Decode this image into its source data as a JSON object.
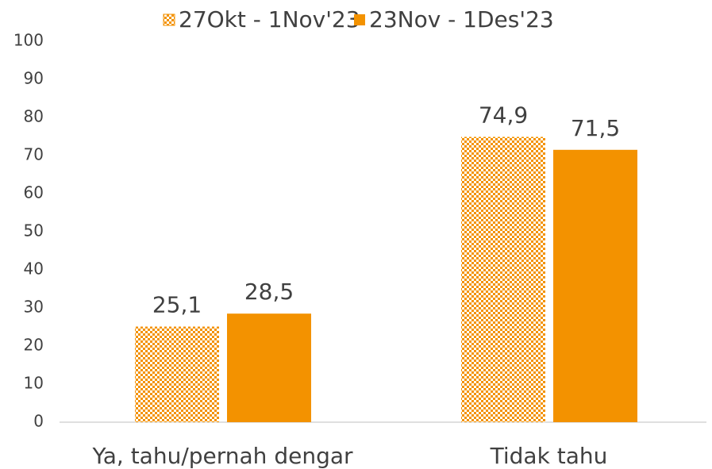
{
  "chart_data": {
    "type": "bar",
    "categories": [
      "Ya, tahu/pernah dengar",
      "Tidak tahu"
    ],
    "series": [
      {
        "name": "27Okt - 1Nov'23",
        "color": "#f39200",
        "pattern": "checker",
        "values": [
          25.1,
          74.9
        ],
        "value_labels": [
          "25,1",
          "74,9"
        ]
      },
      {
        "name": "23Nov - 1Des'23",
        "color": "#f39200",
        "values": [
          28.5,
          71.5
        ],
        "value_labels": [
          "28,5",
          "71,5"
        ]
      }
    ],
    "ylim": [
      0,
      100
    ],
    "yticks": [
      0,
      10,
      20,
      30,
      40,
      50,
      60,
      70,
      80,
      90,
      100
    ],
    "grid": false,
    "legend": "top"
  }
}
